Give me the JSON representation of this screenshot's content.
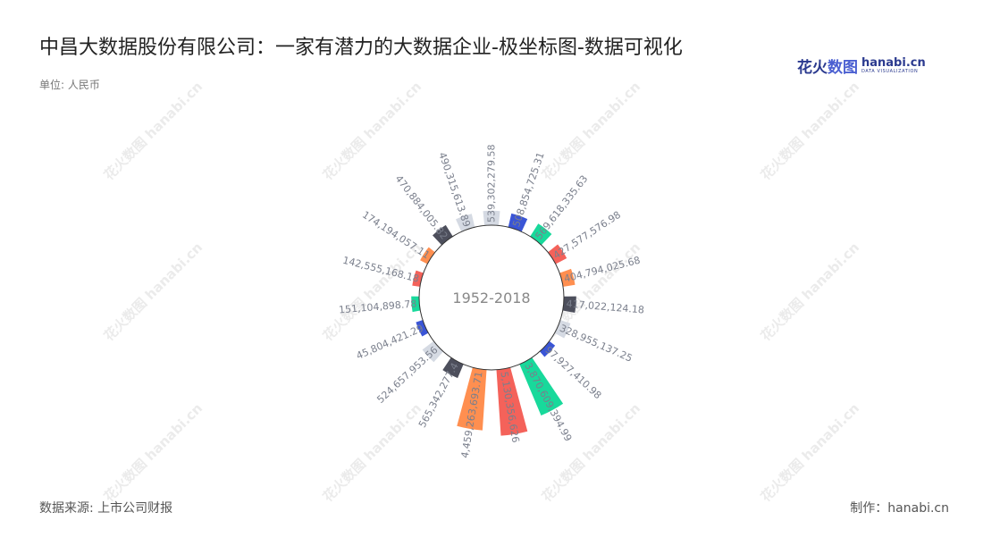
{
  "header": {
    "title": "中昌大数据股份有限公司：一家有潜力的大数据企业-极坐标图-数据可视化",
    "unit": "单位: 人民币"
  },
  "logo": {
    "cn_part1": "花火",
    "cn_part2": "数图",
    "en": "hanabi.cn",
    "en_sub": "DATA VISUALIZATION"
  },
  "watermark": {
    "cn": "花火数图",
    "en": "hanabi.cn"
  },
  "footer": {
    "source": "数据来源: 上市公司财报",
    "credit": "制作：hanabi.cn"
  },
  "chart_data": {
    "type": "bar",
    "subtype": "polar-radial-bar",
    "center_label": "1952-2018",
    "palette": [
      "#d5dae3",
      "#3a55d6",
      "#18d99b",
      "#f4625a",
      "#ff8f50",
      "#4d4f5c"
    ],
    "series": [
      {
        "label": "539,302,279.58",
        "value": 539302279.58
      },
      {
        "label": "508,854,725.31",
        "value": 508854725.31
      },
      {
        "label": "569,618,335.63",
        "value": 569618335.63
      },
      {
        "label": "427,577,576.98",
        "value": 427577576.98
      },
      {
        "label": "404,794,025.68",
        "value": 404794025.68
      },
      {
        "label": "417,022,124.18",
        "value": 417022124.18
      },
      {
        "label": "328,955,137.25",
        "value": 328955137.25
      },
      {
        "label": "97,927,410.98",
        "value": 97927410.98
      },
      {
        "label": "3,870,609,394.99",
        "value": 3870609394.99
      },
      {
        "label": "5,130,356,626",
        "value": 5130356626
      },
      {
        "label": "4,459,263,693.71",
        "value": 4459263693.71
      },
      {
        "label": "565,342,277.4",
        "value": 565342277.4
      },
      {
        "label": "524,657,953.56",
        "value": 524657953.56
      },
      {
        "label": "45,804,421.29",
        "value": 45804421.29
      },
      {
        "label": "151,104,898.78",
        "value": 151104898.78
      },
      {
        "label": "142,555,168.18",
        "value": 142555168.18
      },
      {
        "label": "174,194,057.11",
        "value": 174194057.11
      },
      {
        "label": "470,884,005.82",
        "value": 470884005.82
      },
      {
        "label": "490,315,613.89",
        "value": 490315613.89
      }
    ]
  }
}
